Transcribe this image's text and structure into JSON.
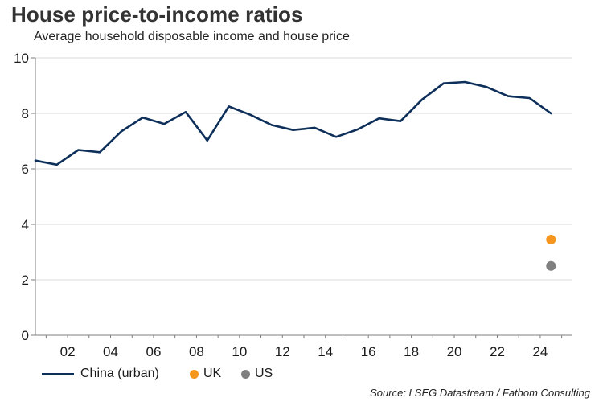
{
  "chart_data": {
    "type": "line",
    "title": "House price-to-income ratios",
    "subtitle": "Average household disposable income and house price",
    "xlabel": "",
    "ylabel": "",
    "ylim": [
      0,
      10
    ],
    "xlim": [
      2000.5,
      2025.5
    ],
    "yticks": [
      0,
      2,
      4,
      6,
      8,
      10
    ],
    "ytick_labels": [
      "0",
      "2",
      "4",
      "6",
      "8",
      "10"
    ],
    "xticks": [
      2002,
      2004,
      2006,
      2008,
      2010,
      2012,
      2014,
      2016,
      2018,
      2020,
      2022,
      2024
    ],
    "xtick_labels": [
      "02",
      "04",
      "06",
      "08",
      "10",
      "12",
      "14",
      "16",
      "18",
      "20",
      "22",
      "24"
    ],
    "grid": "horizontal",
    "legend_position": "bottom-left",
    "source": "Source: LSEG Datastream / Fathom Consulting",
    "series": [
      {
        "name": "China (urban)",
        "kind": "line",
        "color": "#0d2f5a",
        "x": [
          2000.5,
          2001.5,
          2002.5,
          2003.5,
          2004.5,
          2005.5,
          2006.5,
          2007.5,
          2008.5,
          2009.5,
          2010.5,
          2011.5,
          2012.5,
          2013.5,
          2014.5,
          2015.5,
          2016.5,
          2017.5,
          2018.5,
          2019.5,
          2020.5,
          2021.5,
          2022.5,
          2023.5,
          2024.5
        ],
        "values": [
          6.3,
          6.15,
          6.68,
          6.6,
          7.35,
          7.85,
          7.62,
          8.05,
          7.02,
          8.25,
          7.95,
          7.58,
          7.4,
          7.48,
          7.15,
          7.42,
          7.82,
          7.72,
          8.5,
          9.08,
          9.13,
          8.95,
          8.62,
          8.55,
          8.0
        ]
      },
      {
        "name": "UK",
        "kind": "point",
        "color": "#f5961e",
        "x": [
          2024.5
        ],
        "values": [
          3.45
        ]
      },
      {
        "name": "US",
        "kind": "point",
        "color": "#808080",
        "x": [
          2024.5
        ],
        "values": [
          2.5
        ]
      }
    ]
  },
  "colors": {
    "axis": "#7f7f7f",
    "gridline": "#d9d9d9",
    "text": "#1a1a1a"
  }
}
